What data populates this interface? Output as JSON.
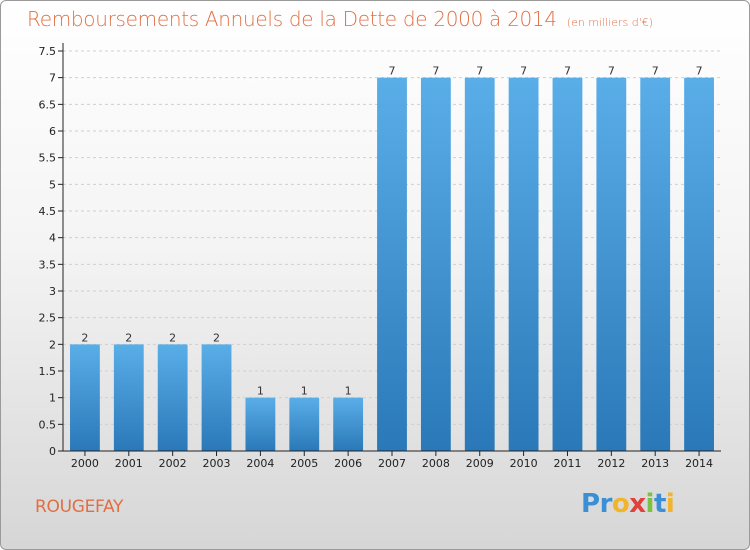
{
  "header": {
    "title": "Remboursements Annuels de la Dette de 2000 à 2014",
    "unit": "(en milliers d'€)"
  },
  "commune": "ROUGEFAY",
  "logo": {
    "text": "Proxiti",
    "letters": [
      {
        "ch": "P",
        "color": "#3a8fd6"
      },
      {
        "ch": "r",
        "color": "#3a8fd6"
      },
      {
        "ch": "o",
        "color": "#f0b52b"
      },
      {
        "ch": "x",
        "color": "#e2403a"
      },
      {
        "ch": "i",
        "color": "#7cc142"
      },
      {
        "ch": "t",
        "color": "#3a8fd6"
      },
      {
        "ch": "i",
        "color": "#f0b52b"
      }
    ]
  },
  "chart_data": {
    "type": "bar",
    "categories": [
      "2000",
      "2001",
      "2002",
      "2003",
      "2004",
      "2005",
      "2006",
      "2007",
      "2008",
      "2009",
      "2010",
      "2011",
      "2012",
      "2013",
      "2014"
    ],
    "values": [
      2,
      2,
      2,
      2,
      1,
      1,
      1,
      7,
      7,
      7,
      7,
      7,
      7,
      7,
      7
    ],
    "data_labels": [
      "2",
      "2",
      "2",
      "2",
      "1",
      "1",
      "1",
      "7",
      "7",
      "7",
      "7",
      "7",
      "7",
      "7",
      "7"
    ],
    "yticks": [
      "0",
      "0.5",
      "1",
      "1.5",
      "2",
      "2.5",
      "3",
      "3.5",
      "4",
      "4.5",
      "5",
      "5.5",
      "6",
      "6.5",
      "7",
      "7.5"
    ],
    "ylim": [
      0,
      7.5
    ],
    "grid": true,
    "colors": {
      "bar_top": "#5aaee8",
      "bar_bottom": "#2a78b8",
      "grid": "#cfcfcf",
      "axis": "#222222"
    }
  }
}
